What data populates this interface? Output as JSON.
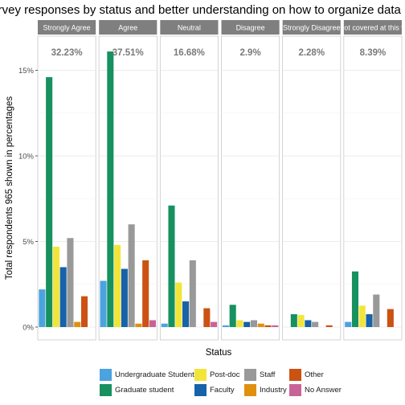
{
  "chart_data": {
    "type": "bar",
    "title": "urvey responses by status and better understanding on how to organize data in",
    "xlabel": "Status",
    "ylabel": "Total respondents 965 shown in percentages",
    "ylim": [
      0,
      16.4
    ],
    "yticks": [
      {
        "value": 0,
        "label": "0%"
      },
      {
        "value": 5,
        "label": "5%"
      },
      {
        "value": 10,
        "label": "10%"
      },
      {
        "value": 15,
        "label": "15%"
      }
    ],
    "grid": true,
    "legend_position": "bottom",
    "series_colors": [
      "#4ba3e0",
      "#16915f",
      "#f2e53a",
      "#1762a8",
      "#999999",
      "#e0900e",
      "#cc5213",
      "#c96397"
    ],
    "statuses": [
      "Undergraduate Student",
      "Graduate student",
      "Post-doc",
      "Faculty",
      "Staff",
      "Industry",
      "Other",
      "No Answer"
    ],
    "panels": [
      {
        "label": "Strongly Agree",
        "total": "32.23%",
        "values": [
          2.2,
          14.6,
          4.7,
          3.5,
          5.2,
          0.3,
          1.8,
          null
        ]
      },
      {
        "label": "Agree",
        "total": "37.51%",
        "values": [
          2.7,
          16.1,
          4.8,
          3.4,
          6.0,
          0.2,
          3.9,
          0.4
        ]
      },
      {
        "label": "Neutral",
        "total": "16.68%",
        "values": [
          0.2,
          7.1,
          2.6,
          1.5,
          3.9,
          null,
          1.1,
          0.3
        ]
      },
      {
        "label": "Disagree",
        "total": "2.9%",
        "values": [
          0.1,
          1.3,
          0.4,
          0.3,
          0.4,
          0.2,
          0.1,
          0.1
        ]
      },
      {
        "label": "Strongly Disagree",
        "total": "2.28%",
        "values": [
          null,
          0.75,
          0.7,
          0.4,
          0.3,
          null,
          0.1,
          null
        ]
      },
      {
        "label": "Not covered at this w",
        "total": "8.39%",
        "values": [
          0.3,
          3.25,
          1.25,
          0.75,
          1.9,
          null,
          1.05,
          null
        ]
      }
    ]
  },
  "legend": {
    "items": [
      {
        "label": "Undergraduate Student",
        "color": "#4ba3e0"
      },
      {
        "label": "Graduate student",
        "color": "#16915f"
      },
      {
        "label": "Post-doc",
        "color": "#f2e53a"
      },
      {
        "label": "Faculty",
        "color": "#1762a8"
      },
      {
        "label": "Staff",
        "color": "#999999"
      },
      {
        "label": "Industry",
        "color": "#e0900e"
      },
      {
        "label": "Other",
        "color": "#cc5213"
      },
      {
        "label": "No Answer",
        "color": "#c96397"
      }
    ]
  }
}
